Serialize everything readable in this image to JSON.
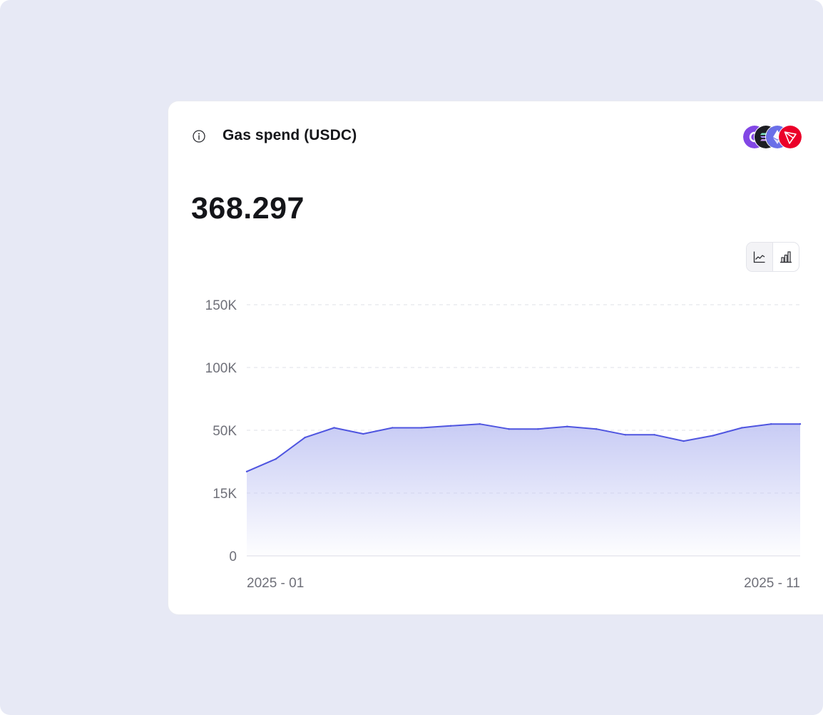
{
  "card": {
    "title": "Gas spend (USDC)",
    "value": "368.297",
    "info_icon": "info-circle-icon",
    "chain_icons": [
      {
        "name": "polygon-icon",
        "color": "#8247e5"
      },
      {
        "name": "solana-icon",
        "color": "#1c1d22"
      },
      {
        "name": "ethereum-icon",
        "color": "#6a6fe8"
      },
      {
        "name": "tron-icon",
        "color": "#eb0029"
      }
    ],
    "toggle": {
      "line_icon": "line-chart-icon",
      "bar_icon": "bar-chart-icon",
      "selected": "line"
    }
  },
  "chart_data": {
    "type": "area",
    "title": "",
    "xlabel": "",
    "ylabel": "",
    "y_ticks": [
      "0",
      "15K",
      "50K",
      "100K",
      "150K"
    ],
    "x_tick_labels": [
      "2025 - 01",
      "2025 - 11"
    ],
    "grid": "horizontal dashed",
    "line_color": "#4f55e0",
    "fill_color": "#c5c9f4",
    "series": [
      {
        "values": [
          27000,
          34000,
          46000,
          52000,
          48000,
          52000,
          52000,
          53500,
          55000,
          51000,
          51000,
          53000,
          51000,
          47500,
          47500,
          44000,
          47000,
          52000,
          55000,
          55000
        ]
      }
    ]
  }
}
